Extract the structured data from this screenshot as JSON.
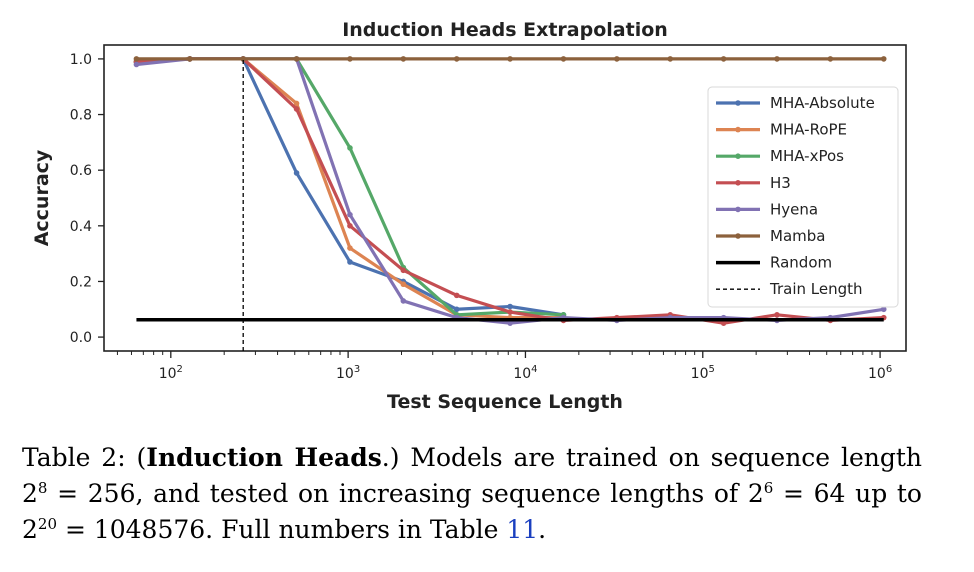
{
  "chart_data": {
    "type": "line",
    "title": "Induction Heads Extrapolation",
    "xlabel": "Test Sequence Length",
    "ylabel": "Accuracy",
    "xscale": "log",
    "xlim": [
      42,
      1400000
    ],
    "ylim": [
      -0.05,
      1.05
    ],
    "yticks": [
      0.0,
      0.2,
      0.4,
      0.6,
      0.8,
      1.0
    ],
    "ytick_labels": [
      "0.0",
      "0.2",
      "0.4",
      "0.6",
      "0.8",
      "1.0"
    ],
    "xticks": [
      100,
      1000,
      10000,
      100000,
      1000000
    ],
    "xtick_labels": [
      {
        "base": "10",
        "exp": "2"
      },
      {
        "base": "10",
        "exp": "3"
      },
      {
        "base": "10",
        "exp": "4"
      },
      {
        "base": "10",
        "exp": "5"
      },
      {
        "base": "10",
        "exp": "6"
      }
    ],
    "grid": false,
    "legend_position": "center-right",
    "x": [
      64,
      128,
      256,
      512,
      1024,
      2048,
      4096,
      8192,
      16384,
      32768,
      65536,
      131072,
      262144,
      524288,
      1048576
    ],
    "series": [
      {
        "name": "MHA-Absolute",
        "color": "#4c72b0",
        "style": "line",
        "values": [
          0.99,
          1.0,
          1.0,
          0.59,
          0.27,
          0.2,
          0.1,
          0.11,
          0.08,
          null,
          null,
          null,
          null,
          null,
          null
        ]
      },
      {
        "name": "MHA-RoPE",
        "color": "#dd8452",
        "style": "line",
        "values": [
          0.99,
          1.0,
          1.0,
          0.84,
          0.32,
          0.19,
          0.08,
          0.07,
          0.07,
          null,
          null,
          null,
          null,
          null,
          null
        ]
      },
      {
        "name": "MHA-xPos",
        "color": "#55a868",
        "style": "line",
        "values": [
          0.99,
          1.0,
          1.0,
          1.0,
          0.68,
          0.25,
          0.08,
          0.09,
          0.08,
          null,
          null,
          null,
          null,
          null,
          null
        ]
      },
      {
        "name": "H3",
        "color": "#c44e52",
        "style": "line",
        "values": [
          0.99,
          1.0,
          1.0,
          0.82,
          0.4,
          0.24,
          0.15,
          0.09,
          0.06,
          0.07,
          0.08,
          0.05,
          0.08,
          0.06,
          0.07
        ]
      },
      {
        "name": "Hyena",
        "color": "#8172b3",
        "style": "line",
        "values": [
          0.98,
          1.0,
          1.0,
          1.0,
          0.44,
          0.13,
          0.07,
          0.05,
          0.07,
          0.06,
          0.07,
          0.07,
          0.06,
          0.07,
          0.1
        ]
      },
      {
        "name": "Mamba",
        "color": "#8c613c",
        "style": "line",
        "values": [
          1.0,
          1.0,
          1.0,
          1.0,
          1.0,
          1.0,
          1.0,
          1.0,
          1.0,
          1.0,
          1.0,
          1.0,
          1.0,
          1.0,
          1.0
        ]
      },
      {
        "name": "Random",
        "color": "#000000",
        "style": "hline",
        "y": 0.0625,
        "x_range": [
          64,
          1048576
        ]
      },
      {
        "name": "Train Length",
        "color": "#000000",
        "style": "vline-dashed",
        "x": 256,
        "y_range": [
          -0.05,
          1.0
        ]
      }
    ]
  },
  "caption": {
    "label": "Table 2: (",
    "bold": "Induction Heads",
    "after_bold": ".)  Models are trained on sequence length 2",
    "exp1": "8",
    "part2": " = 256, and tested on increasing sequence lengths of 2",
    "exp2": "6",
    "part3": " = 64 up to 2",
    "exp3": "20",
    "part4": " = 1048576. Full numbers in Table ",
    "ref": "11",
    "end": "."
  }
}
